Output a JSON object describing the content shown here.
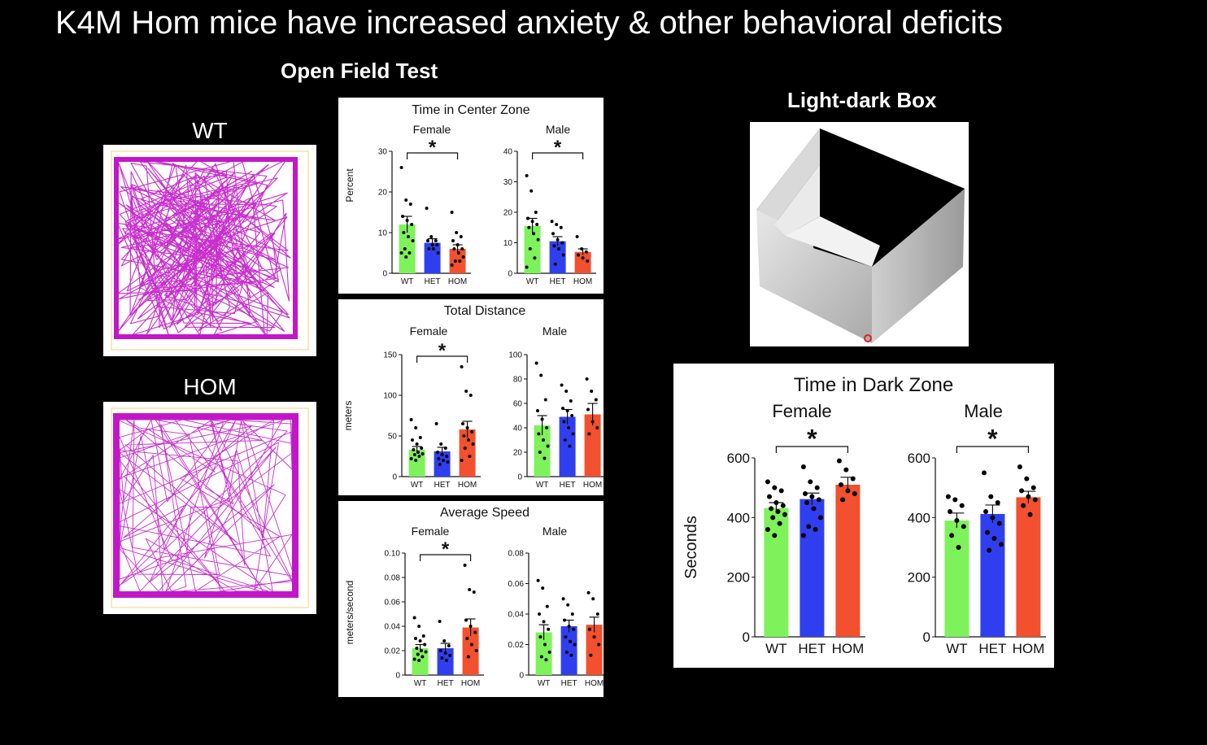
{
  "slide": {
    "title": "K4M Hom mice have increased anxiety & other behavioral deficits",
    "open_field_title": "Open Field Test",
    "light_dark_title": "Light-dark Box",
    "wt_track_label": "WT",
    "hom_track_label": "HOM"
  },
  "colors": {
    "WT": "#7ef25a",
    "HET": "#2f3ff0",
    "HOM": "#f2502e",
    "track": "#c217c9"
  },
  "chart_data": [
    {
      "id": "center",
      "type": "bar",
      "title": "Time in Center Zone",
      "ylabel": "Percent",
      "categories": [
        "WT",
        "HET",
        "HOM"
      ],
      "panels": [
        {
          "name": "Female",
          "ylim": [
            0,
            30
          ],
          "yticks": [
            0,
            10,
            20,
            30
          ],
          "values": [
            12,
            7.5,
            6
          ],
          "errors": [
            2,
            1,
            1
          ],
          "sig": "*",
          "points": [
            [
              26,
              18,
              17,
              14,
              13,
              12,
              10,
              9,
              8,
              6,
              5,
              5,
              4
            ],
            [
              16,
              9,
              8,
              8,
              7,
              7,
              6,
              6,
              5
            ],
            [
              15,
              10,
              9,
              8,
              7,
              6,
              6,
              5,
              4,
              3,
              3,
              2
            ]
          ]
        },
        {
          "name": "Male",
          "ylim": [
            0,
            40
          ],
          "yticks": [
            0,
            10,
            20,
            30,
            40
          ],
          "values": [
            15.5,
            10.5,
            7
          ],
          "errors": [
            2.5,
            1.5,
            1
          ],
          "sig": "*",
          "points": [
            [
              32,
              27,
              20,
              18,
              17,
              16,
              15,
              13,
              11,
              8,
              5,
              2
            ],
            [
              17,
              16,
              15,
              13,
              11,
              10,
              9,
              8,
              6,
              3
            ],
            [
              12,
              8,
              7,
              6,
              5,
              4
            ]
          ]
        }
      ]
    },
    {
      "id": "distance",
      "type": "bar",
      "title": "Total Distance",
      "ylabel": "meters",
      "categories": [
        "WT",
        "HET",
        "HOM"
      ],
      "panels": [
        {
          "name": "Female",
          "ylim": [
            0,
            150
          ],
          "yticks": [
            0,
            50,
            100,
            150
          ],
          "values": [
            33,
            31,
            58
          ],
          "errors": [
            4,
            5,
            10
          ],
          "sig": "*",
          "points": [
            [
              70,
              60,
              48,
              45,
              40,
              35,
              33,
              30,
              28,
              27,
              25,
              22,
              20
            ],
            [
              65,
              40,
              35,
              30,
              27,
              25,
              22,
              20,
              18,
              15
            ],
            [
              135,
              105,
              100,
              65,
              60,
              55,
              50,
              45,
              40,
              35,
              25,
              20
            ]
          ]
        },
        {
          "name": "Male",
          "ylim": [
            0,
            100
          ],
          "yticks": [
            0,
            20,
            40,
            60,
            80,
            100
          ],
          "values": [
            42,
            49,
            51
          ],
          "errors": [
            8,
            6,
            9
          ],
          "sig": "",
          "points": [
            [
              93,
              83,
              63,
              54,
              47,
              40,
              35,
              30,
              25,
              20,
              15
            ],
            [
              75,
              70,
              62,
              56,
              54,
              50,
              45,
              40,
              35,
              30,
              25
            ],
            [
              80,
              70,
              63,
              55,
              45,
              40,
              35
            ]
          ]
        }
      ]
    },
    {
      "id": "speed",
      "type": "bar",
      "title": "Average Speed",
      "ylabel": "meters/second",
      "categories": [
        "WT",
        "HET",
        "HOM"
      ],
      "panels": [
        {
          "name": "Female",
          "ylim": [
            0,
            0.1
          ],
          "yticks": [
            0,
            0.02,
            0.04,
            0.06,
            0.08,
            0.1
          ],
          "ytick_labels": [
            "0",
            "0.02",
            "0.04",
            "0.06",
            "0.08",
            "0.10"
          ],
          "values": [
            0.022,
            0.022,
            0.039
          ],
          "errors": [
            0.003,
            0.004,
            0.007
          ],
          "sig": "*",
          "points": [
            [
              0.047,
              0.04,
              0.032,
              0.03,
              0.028,
              0.025,
              0.022,
              0.02,
              0.019,
              0.017,
              0.015,
              0.013,
              0.012
            ],
            [
              0.044,
              0.028,
              0.024,
              0.02,
              0.018,
              0.016,
              0.014,
              0.012
            ],
            [
              0.09,
              0.07,
              0.068,
              0.045,
              0.04,
              0.035,
              0.03,
              0.025,
              0.02,
              0.015
            ]
          ]
        },
        {
          "name": "Male",
          "ylim": [
            0,
            0.08
          ],
          "yticks": [
            0,
            0.02,
            0.04,
            0.06,
            0.08
          ],
          "values": [
            0.028,
            0.032,
            0.033
          ],
          "errors": [
            0.005,
            0.004,
            0.005
          ],
          "sig": "",
          "points": [
            [
              0.062,
              0.057,
              0.045,
              0.04,
              0.035,
              0.03,
              0.025,
              0.02,
              0.015,
              0.012,
              0.01
            ],
            [
              0.05,
              0.046,
              0.04,
              0.036,
              0.032,
              0.03,
              0.025,
              0.022,
              0.02,
              0.015,
              0.013
            ],
            [
              0.054,
              0.05,
              0.04,
              0.03,
              0.025,
              0.02,
              0.013
            ]
          ]
        }
      ]
    },
    {
      "id": "dark",
      "type": "bar",
      "title": "Time in Dark Zone",
      "ylabel": "Seconds",
      "categories": [
        "WT",
        "HET",
        "HOM"
      ],
      "panels": [
        {
          "name": "Female",
          "ylim": [
            0,
            600
          ],
          "yticks": [
            0,
            200,
            400,
            600
          ],
          "values": [
            432,
            462,
            510
          ],
          "errors": [
            18,
            20,
            25
          ],
          "sig": "*",
          "points": [
            [
              520,
              500,
              490,
              470,
              450,
              440,
              430,
              420,
              410,
              400,
              380,
              360,
              340
            ],
            [
              570,
              520,
              500,
              480,
              470,
              460,
              450,
              430,
              400,
              370,
              360,
              340
            ],
            [
              590,
              560,
              530,
              510,
              490,
              480,
              460
            ]
          ]
        },
        {
          "name": "Male",
          "ylim": [
            0,
            600
          ],
          "yticks": [
            0,
            200,
            400,
            600
          ],
          "values": [
            390,
            412,
            468
          ],
          "errors": [
            25,
            30,
            20
          ],
          "sig": "*",
          "points": [
            [
              470,
              460,
              440,
              420,
              390,
              370,
              340,
              300
            ],
            [
              550,
              470,
              450,
              420,
              400,
              380,
              350,
              330,
              310,
              290
            ],
            [
              570,
              530,
              500,
              490,
              470,
              460,
              440,
              410
            ]
          ]
        }
      ]
    }
  ]
}
